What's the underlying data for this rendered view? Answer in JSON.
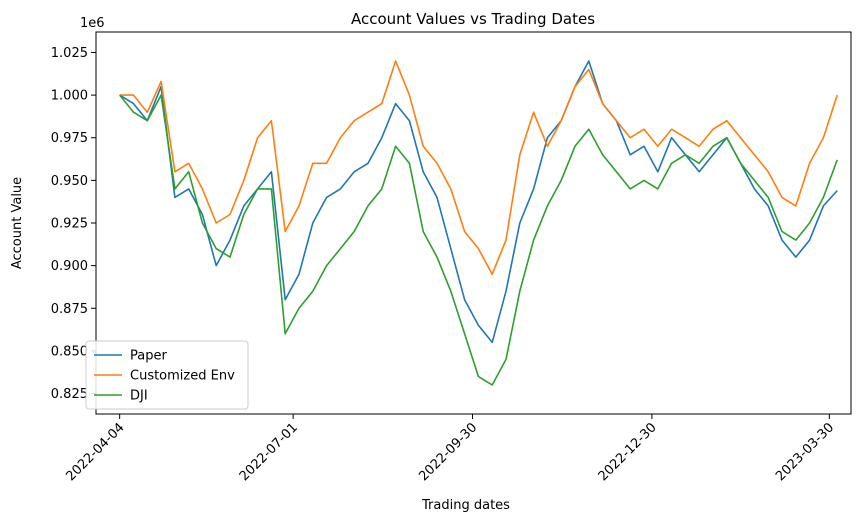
{
  "chart_data": {
    "type": "line",
    "title": "Account Values vs Trading Dates",
    "xlabel": "Trading dates",
    "ylabel": "Account Value",
    "offset_label": "1e6",
    "grid": false,
    "legend_position": "lower-left",
    "x_ticks": [
      "2022-04-04",
      "2022-07-01",
      "2022-09-30",
      "2022-12-30",
      "2023-03-30"
    ],
    "x_range": [
      "2022-03-23",
      "2023-04-10"
    ],
    "y_ticks": [
      0.825,
      0.85,
      0.875,
      0.9,
      0.925,
      0.95,
      0.975,
      1.0,
      1.025
    ],
    "y_tick_labels": [
      "0.825",
      "0.850",
      "0.875",
      "0.900",
      "0.925",
      "0.950",
      "0.975",
      "1.000",
      "1.025"
    ],
    "ylim": [
      0.813,
      1.037
    ],
    "series": [
      {
        "name": "Paper",
        "color": "#1f77b4",
        "points": [
          [
            "2022-04-04",
            1.0
          ],
          [
            "2022-04-11",
            0.995
          ],
          [
            "2022-04-18",
            0.985
          ],
          [
            "2022-04-25",
            1.005
          ],
          [
            "2022-05-02",
            0.94
          ],
          [
            "2022-05-09",
            0.945
          ],
          [
            "2022-05-16",
            0.93
          ],
          [
            "2022-05-23",
            0.9
          ],
          [
            "2022-05-30",
            0.915
          ],
          [
            "2022-06-06",
            0.935
          ],
          [
            "2022-06-13",
            0.945
          ],
          [
            "2022-06-20",
            0.955
          ],
          [
            "2022-06-27",
            0.88
          ],
          [
            "2022-07-04",
            0.895
          ],
          [
            "2022-07-11",
            0.925
          ],
          [
            "2022-07-18",
            0.94
          ],
          [
            "2022-07-25",
            0.945
          ],
          [
            "2022-08-01",
            0.955
          ],
          [
            "2022-08-08",
            0.96
          ],
          [
            "2022-08-15",
            0.975
          ],
          [
            "2022-08-22",
            0.995
          ],
          [
            "2022-08-29",
            0.985
          ],
          [
            "2022-09-05",
            0.955
          ],
          [
            "2022-09-12",
            0.94
          ],
          [
            "2022-09-19",
            0.91
          ],
          [
            "2022-09-26",
            0.88
          ],
          [
            "2022-10-03",
            0.865
          ],
          [
            "2022-10-10",
            0.855
          ],
          [
            "2022-10-17",
            0.885
          ],
          [
            "2022-10-24",
            0.925
          ],
          [
            "2022-10-31",
            0.945
          ],
          [
            "2022-11-07",
            0.975
          ],
          [
            "2022-11-14",
            0.985
          ],
          [
            "2022-11-21",
            1.005
          ],
          [
            "2022-11-28",
            1.02
          ],
          [
            "2022-12-05",
            0.995
          ],
          [
            "2022-12-12",
            0.985
          ],
          [
            "2022-12-19",
            0.965
          ],
          [
            "2022-12-26",
            0.97
          ],
          [
            "2023-01-02",
            0.955
          ],
          [
            "2023-01-09",
            0.975
          ],
          [
            "2023-01-16",
            0.965
          ],
          [
            "2023-01-23",
            0.955
          ],
          [
            "2023-01-30",
            0.965
          ],
          [
            "2023-02-06",
            0.975
          ],
          [
            "2023-02-13",
            0.96
          ],
          [
            "2023-02-20",
            0.945
          ],
          [
            "2023-02-27",
            0.935
          ],
          [
            "2023-03-06",
            0.915
          ],
          [
            "2023-03-13",
            0.905
          ],
          [
            "2023-03-20",
            0.915
          ],
          [
            "2023-03-27",
            0.935
          ],
          [
            "2023-04-03",
            0.944
          ]
        ]
      },
      {
        "name": "Customized Env",
        "color": "#ff7f0e",
        "points": [
          [
            "2022-04-04",
            1.0
          ],
          [
            "2022-04-11",
            1.0
          ],
          [
            "2022-04-18",
            0.99
          ],
          [
            "2022-04-25",
            1.008
          ],
          [
            "2022-05-02",
            0.955
          ],
          [
            "2022-05-09",
            0.96
          ],
          [
            "2022-05-16",
            0.945
          ],
          [
            "2022-05-23",
            0.925
          ],
          [
            "2022-05-30",
            0.93
          ],
          [
            "2022-06-06",
            0.95
          ],
          [
            "2022-06-13",
            0.975
          ],
          [
            "2022-06-20",
            0.985
          ],
          [
            "2022-06-27",
            0.92
          ],
          [
            "2022-07-04",
            0.935
          ],
          [
            "2022-07-11",
            0.96
          ],
          [
            "2022-07-18",
            0.96
          ],
          [
            "2022-07-25",
            0.975
          ],
          [
            "2022-08-01",
            0.985
          ],
          [
            "2022-08-08",
            0.99
          ],
          [
            "2022-08-15",
            0.995
          ],
          [
            "2022-08-22",
            1.02
          ],
          [
            "2022-08-29",
            1.0
          ],
          [
            "2022-09-05",
            0.97
          ],
          [
            "2022-09-12",
            0.96
          ],
          [
            "2022-09-19",
            0.945
          ],
          [
            "2022-09-26",
            0.92
          ],
          [
            "2022-10-03",
            0.91
          ],
          [
            "2022-10-10",
            0.895
          ],
          [
            "2022-10-17",
            0.915
          ],
          [
            "2022-10-24",
            0.965
          ],
          [
            "2022-10-31",
            0.99
          ],
          [
            "2022-11-07",
            0.97
          ],
          [
            "2022-11-14",
            0.985
          ],
          [
            "2022-11-21",
            1.005
          ],
          [
            "2022-11-28",
            1.015
          ],
          [
            "2022-12-05",
            0.995
          ],
          [
            "2022-12-12",
            0.985
          ],
          [
            "2022-12-19",
            0.975
          ],
          [
            "2022-12-26",
            0.98
          ],
          [
            "2023-01-02",
            0.97
          ],
          [
            "2023-01-09",
            0.98
          ],
          [
            "2023-01-16",
            0.975
          ],
          [
            "2023-01-23",
            0.97
          ],
          [
            "2023-01-30",
            0.98
          ],
          [
            "2023-02-06",
            0.985
          ],
          [
            "2023-02-13",
            0.975
          ],
          [
            "2023-02-20",
            0.965
          ],
          [
            "2023-02-27",
            0.955
          ],
          [
            "2023-03-06",
            0.94
          ],
          [
            "2023-03-13",
            0.935
          ],
          [
            "2023-03-20",
            0.96
          ],
          [
            "2023-03-27",
            0.975
          ],
          [
            "2023-04-03",
            1.0
          ]
        ]
      },
      {
        "name": "DJI",
        "color": "#2ca02c",
        "points": [
          [
            "2022-04-04",
            1.0
          ],
          [
            "2022-04-11",
            0.99
          ],
          [
            "2022-04-18",
            0.985
          ],
          [
            "2022-04-25",
            1.0
          ],
          [
            "2022-05-02",
            0.945
          ],
          [
            "2022-05-09",
            0.955
          ],
          [
            "2022-05-16",
            0.925
          ],
          [
            "2022-05-23",
            0.91
          ],
          [
            "2022-05-30",
            0.905
          ],
          [
            "2022-06-06",
            0.93
          ],
          [
            "2022-06-13",
            0.945
          ],
          [
            "2022-06-20",
            0.945
          ],
          [
            "2022-06-27",
            0.86
          ],
          [
            "2022-07-04",
            0.875
          ],
          [
            "2022-07-11",
            0.885
          ],
          [
            "2022-07-18",
            0.9
          ],
          [
            "2022-07-25",
            0.91
          ],
          [
            "2022-08-01",
            0.92
          ],
          [
            "2022-08-08",
            0.935
          ],
          [
            "2022-08-15",
            0.945
          ],
          [
            "2022-08-22",
            0.97
          ],
          [
            "2022-08-29",
            0.96
          ],
          [
            "2022-09-05",
            0.92
          ],
          [
            "2022-09-12",
            0.905
          ],
          [
            "2022-09-19",
            0.885
          ],
          [
            "2022-09-26",
            0.86
          ],
          [
            "2022-10-03",
            0.835
          ],
          [
            "2022-10-10",
            0.83
          ],
          [
            "2022-10-17",
            0.845
          ],
          [
            "2022-10-24",
            0.885
          ],
          [
            "2022-10-31",
            0.915
          ],
          [
            "2022-11-07",
            0.935
          ],
          [
            "2022-11-14",
            0.95
          ],
          [
            "2022-11-21",
            0.97
          ],
          [
            "2022-11-28",
            0.98
          ],
          [
            "2022-12-05",
            0.965
          ],
          [
            "2022-12-12",
            0.955
          ],
          [
            "2022-12-19",
            0.945
          ],
          [
            "2022-12-26",
            0.95
          ],
          [
            "2023-01-02",
            0.945
          ],
          [
            "2023-01-09",
            0.96
          ],
          [
            "2023-01-16",
            0.965
          ],
          [
            "2023-01-23",
            0.96
          ],
          [
            "2023-01-30",
            0.97
          ],
          [
            "2023-02-06",
            0.975
          ],
          [
            "2023-02-13",
            0.96
          ],
          [
            "2023-02-20",
            0.95
          ],
          [
            "2023-02-27",
            0.94
          ],
          [
            "2023-03-06",
            0.92
          ],
          [
            "2023-03-13",
            0.915
          ],
          [
            "2023-03-20",
            0.925
          ],
          [
            "2023-03-27",
            0.94
          ],
          [
            "2023-04-03",
            0.962
          ]
        ]
      }
    ]
  }
}
